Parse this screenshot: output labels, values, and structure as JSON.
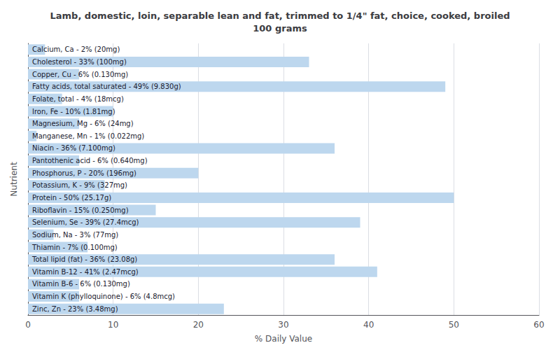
{
  "chart_data": {
    "type": "bar",
    "title": "Lamb, domestic, loin, separable lean and fat, trimmed to 1/4\" fat, choice, cooked, broiled\n100 grams",
    "xlabel": "% Daily Value",
    "ylabel": "Nutrient",
    "orientation": "horizontal",
    "categories": [
      "Calcium, Ca - 2% (20mg)",
      "Cholesterol - 33% (100mg)",
      "Copper, Cu - 6% (0.130mg)",
      "Fatty acids, total saturated - 49% (9.830g)",
      "Folate, total - 4% (18mcg)",
      "Iron, Fe - 10% (1.81mg)",
      "Magnesium, Mg - 6% (24mg)",
      "Manganese, Mn - 1% (0.022mg)",
      "Niacin - 36% (7.100mg)",
      "Pantothenic acid - 6% (0.640mg)",
      "Phosphorus, P - 20% (196mg)",
      "Potassium, K - 9% (327mg)",
      "Protein - 50% (25.17g)",
      "Riboflavin - 15% (0.250mg)",
      "Selenium, Se - 39% (27.4mcg)",
      "Sodium, Na - 3% (77mg)",
      "Thiamin - 7% (0.100mg)",
      "Total lipid (fat) - 36% (23.08g)",
      "Vitamin B-12 - 41% (2.47mcg)",
      "Vitamin B-6 - 6% (0.130mg)",
      "Vitamin K (phylloquinone) - 6% (4.8mcg)",
      "Zinc, Zn - 23% (3.48mg)"
    ],
    "values": [
      2,
      33,
      6,
      49,
      4,
      10,
      6,
      1,
      36,
      6,
      20,
      9,
      50,
      15,
      39,
      3,
      7,
      36,
      41,
      6,
      6,
      23
    ],
    "color": "#bdd7ee",
    "xlim": [
      0,
      60
    ],
    "xticks": [
      0,
      10,
      20,
      30,
      40,
      50,
      60
    ],
    "grid": true,
    "tick_labels": "x"
  }
}
